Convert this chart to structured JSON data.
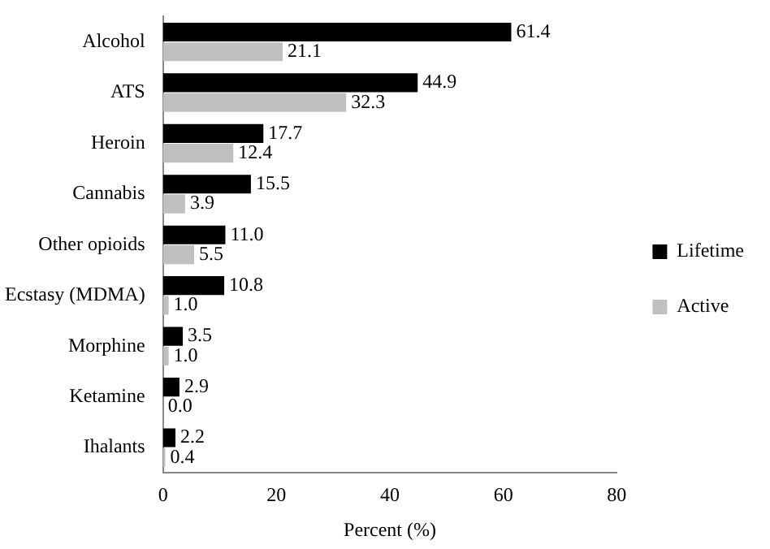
{
  "chart_data": {
    "type": "bar",
    "orientation": "horizontal",
    "xlabel": "Percent (%)",
    "categories": [
      "Alcohol",
      "ATS",
      "Heroin",
      "Cannabis",
      "Other opioids",
      "Ecstasy (MDMA)",
      "Morphine",
      "Ketamine",
      "Ihalants"
    ],
    "series": [
      {
        "name": "Lifetime",
        "color": "#000000",
        "values": [
          61.4,
          44.9,
          17.7,
          15.5,
          11.0,
          10.8,
          3.5,
          2.9,
          2.2
        ],
        "value_labels": [
          "61.4",
          "44.9",
          "17.7",
          "15.5",
          "11.0",
          "10.8",
          "3.5",
          "2.9",
          "2.2"
        ]
      },
      {
        "name": "Active",
        "color": "#c0c0c0",
        "values": [
          21.1,
          32.3,
          12.4,
          3.9,
          5.5,
          1.0,
          1.0,
          0.0,
          0.4
        ],
        "value_labels": [
          "21.1",
          "32.3",
          "12.4",
          "3.9",
          "5.5",
          "1.0",
          "1.0",
          "0.0",
          "0.4"
        ]
      }
    ],
    "xlim": [
      0,
      80
    ],
    "xticks": [
      0,
      20,
      40,
      60,
      80
    ],
    "grid": false,
    "legend": "right"
  }
}
